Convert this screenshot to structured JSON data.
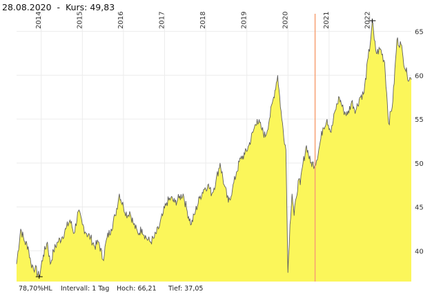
{
  "header": {
    "date": "28.08.2020",
    "separator": "-",
    "price_label": "Kurs:",
    "price_value": "49,83"
  },
  "footer": {
    "hl": "78,70%HL",
    "interval_label": "Intervall:",
    "interval_value": "1 Tag",
    "high_label": "Hoch:",
    "high_value": "66,21",
    "low_label": "Tief:",
    "low_value": "37,05"
  },
  "colors": {
    "fill": "#fbf65a",
    "line": "#5f5f5f",
    "marker": "#f7a072",
    "grid": "#ececec"
  },
  "chart_data": {
    "type": "area",
    "title": "",
    "xlabel": "",
    "ylabel": "",
    "xlim": [
      2013.4,
      2023.0
    ],
    "ylim": [
      36.5,
      67.0
    ],
    "grid": true,
    "x_ticks": [
      "2014",
      "2015",
      "2016",
      "2017",
      "2018",
      "2019",
      "2020",
      "2021",
      "2022"
    ],
    "y_ticks": [
      "40",
      "45",
      "50",
      "55",
      "60",
      "65"
    ],
    "y_tick_values": [
      40,
      45,
      50,
      55,
      60,
      65
    ],
    "x_tick_values": [
      2014,
      2015,
      2016,
      2017,
      2018,
      2019,
      2020,
      2021,
      2022
    ],
    "highlight_x": 2020.66,
    "low_marker": {
      "x": 2013.95,
      "y": 37.05
    },
    "high_marker": {
      "x": 2022.05,
      "y": 66.21
    },
    "series": [
      {
        "x": [
          2013.4,
          2013.5,
          2013.6,
          2013.68,
          2013.75,
          2013.85,
          2013.95,
          2014.05,
          2014.15,
          2014.22,
          2014.3,
          2014.4,
          2014.5,
          2014.6,
          2014.7,
          2014.8,
          2014.9,
          2015.0,
          2015.1,
          2015.2,
          2015.3,
          2015.4,
          2015.5,
          2015.6,
          2015.7,
          2015.8,
          2015.9,
          2016.0,
          2016.1,
          2016.15,
          2016.25,
          2016.35,
          2016.45,
          2016.55,
          2016.65,
          2016.75,
          2016.85,
          2016.95,
          2017.05,
          2017.15,
          2017.25,
          2017.35,
          2017.45,
          2017.55,
          2017.65,
          2017.75,
          2017.85,
          2017.95,
          2018.05,
          2018.15,
          2018.25,
          2018.35,
          2018.45,
          2018.55,
          2018.65,
          2018.75,
          2018.85,
          2018.95,
          2019.05,
          2019.15,
          2019.25,
          2019.35,
          2019.45,
          2019.55,
          2019.65,
          2019.75,
          2019.85,
          2019.95,
          2020.0,
          2020.05,
          2020.1,
          2020.15,
          2020.2,
          2020.25,
          2020.3,
          2020.35,
          2020.45,
          2020.55,
          2020.66,
          2020.75,
          2020.85,
          2020.95,
          2021.05,
          2021.15,
          2021.25,
          2021.35,
          2021.45,
          2021.55,
          2021.65,
          2021.75,
          2021.85,
          2021.95,
          2022.0,
          2022.05,
          2022.1,
          2022.15,
          2022.25,
          2022.35,
          2022.4,
          2022.45,
          2022.55,
          2022.65,
          2022.75,
          2022.8,
          2022.9,
          2023.0
        ],
        "y": [
          38.5,
          42.5,
          41.0,
          40.5,
          38.5,
          38.0,
          37.05,
          39.5,
          41.0,
          38.5,
          40.0,
          41.0,
          41.5,
          42.5,
          43.5,
          42.0,
          44.5,
          43.0,
          42.0,
          41.5,
          40.5,
          41.0,
          39.0,
          41.5,
          42.5,
          44.0,
          46.5,
          45.0,
          44.0,
          44.5,
          43.0,
          42.0,
          42.5,
          41.5,
          41.0,
          41.5,
          42.5,
          44.0,
          45.5,
          46.0,
          45.5,
          46.0,
          46.5,
          44.5,
          43.0,
          44.5,
          46.0,
          47.0,
          47.5,
          46.5,
          48.0,
          50.0,
          47.5,
          45.5,
          47.0,
          49.0,
          50.5,
          51.0,
          52.0,
          53.5,
          55.0,
          54.0,
          53.0,
          55.0,
          57.5,
          60.0,
          55.0,
          51.5,
          37.5,
          43.0,
          46.5,
          44.0,
          46.0,
          48.0,
          47.5,
          49.5,
          52.0,
          50.0,
          49.83,
          51.5,
          54.0,
          55.0,
          53.5,
          56.0,
          57.5,
          56.0,
          55.5,
          57.0,
          56.0,
          57.5,
          58.0,
          62.0,
          63.5,
          66.21,
          64.0,
          62.5,
          63.0,
          61.5,
          58.0,
          54.5,
          57.0,
          64.0,
          63.5,
          62.0,
          60.0,
          59.5
        ]
      }
    ]
  }
}
